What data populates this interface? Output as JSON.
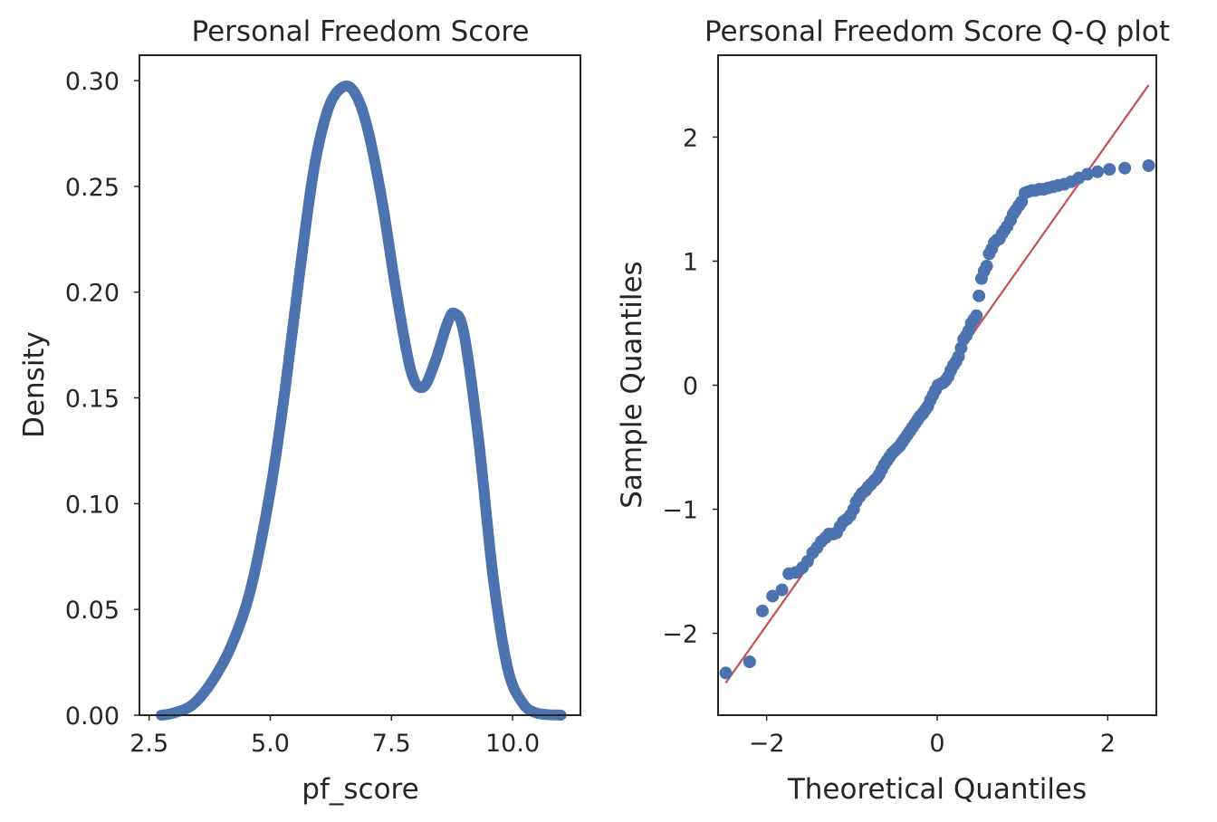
{
  "chart_data": [
    {
      "type": "line",
      "title": "Personal Freedom Score",
      "xlabel": "pf_score",
      "ylabel": "Density",
      "xlim": [
        2.3,
        11.4
      ],
      "ylim": [
        0.0,
        0.312
      ],
      "grid": false,
      "x_ticks": [
        2.5,
        5.0,
        7.5,
        10.0
      ],
      "x_tick_labels": [
        "2.5",
        "5.0",
        "7.5",
        "10.0"
      ],
      "y_ticks": [
        0.0,
        0.05,
        0.1,
        0.15,
        0.2,
        0.25,
        0.3
      ],
      "y_tick_labels": [
        "0.00",
        "0.05",
        "0.10",
        "0.15",
        "0.20",
        "0.25",
        "0.30"
      ],
      "color": "#4c72b0",
      "series": [
        {
          "x": [
            2.75,
            3.0,
            3.4,
            3.8,
            4.2,
            4.6,
            5.0,
            5.3,
            5.6,
            5.9,
            6.2,
            6.5,
            6.75,
            7.0,
            7.3,
            7.6,
            7.9,
            8.15,
            8.4,
            8.65,
            8.8,
            9.0,
            9.3,
            9.6,
            9.9,
            10.2,
            10.5,
            11.0
          ],
          "y": [
            0.0,
            0.001,
            0.005,
            0.016,
            0.033,
            0.06,
            0.106,
            0.153,
            0.208,
            0.258,
            0.287,
            0.297,
            0.294,
            0.278,
            0.244,
            0.2,
            0.163,
            0.155,
            0.167,
            0.185,
            0.19,
            0.18,
            0.13,
            0.065,
            0.022,
            0.006,
            0.001,
            0.0
          ]
        }
      ]
    },
    {
      "type": "scatter",
      "title": "Personal Freedom Score Q-Q plot",
      "xlabel": "Theoretical Quantiles",
      "ylabel": "Sample Quantiles",
      "xlim": [
        -2.57,
        2.57
      ],
      "ylim": [
        -2.66,
        2.66
      ],
      "grid": false,
      "x_ticks": [
        -2,
        0,
        2
      ],
      "x_tick_labels": [
        "−2",
        "0",
        "2"
      ],
      "y_ticks": [
        -2,
        -1,
        0,
        1,
        2
      ],
      "y_tick_labels": [
        "−2",
        "−1",
        "0",
        "1",
        "2"
      ],
      "point_color": "#4c72b0",
      "line_color": "#c44e52",
      "reference_line": [
        [
          -2.48,
          -2.4
        ],
        [
          2.48,
          2.42
        ]
      ],
      "series": [
        {
          "x": [
            -2.48,
            -2.2,
            -2.05,
            -1.93,
            -1.82,
            -1.74,
            -1.66,
            -1.58,
            -1.52,
            -1.46,
            -1.41,
            -1.36,
            -1.31,
            -1.27,
            -1.22,
            -1.18,
            -1.14,
            -1.1,
            -1.06,
            -1.02,
            -0.98,
            -0.95,
            -0.91,
            -0.88,
            -0.84,
            -0.81,
            -0.78,
            -0.74,
            -0.71,
            -0.68,
            -0.65,
            -0.62,
            -0.59,
            -0.56,
            -0.53,
            -0.5,
            -0.47,
            -0.44,
            -0.41,
            -0.38,
            -0.35,
            -0.32,
            -0.29,
            -0.26,
            -0.23,
            -0.2,
            -0.17,
            -0.14,
            -0.11,
            -0.08,
            -0.05,
            -0.02,
            0.01,
            0.04,
            0.07,
            0.1,
            0.13,
            0.16,
            0.19,
            0.22,
            0.25,
            0.28,
            0.31,
            0.34,
            0.37,
            0.4,
            0.43,
            0.46,
            0.49,
            0.52,
            0.55,
            0.58,
            0.61,
            0.64,
            0.67,
            0.7,
            0.73,
            0.76,
            0.79,
            0.82,
            0.86,
            0.89,
            0.92,
            0.96,
            0.99,
            1.03,
            1.07,
            1.11,
            1.15,
            1.2,
            1.25,
            1.3,
            1.36,
            1.42,
            1.49,
            1.57,
            1.66,
            1.76,
            1.88,
            2.02,
            2.2,
            2.48
          ],
          "y": [
            -2.32,
            -2.23,
            -1.82,
            -1.7,
            -1.65,
            -1.52,
            -1.51,
            -1.47,
            -1.42,
            -1.35,
            -1.31,
            -1.26,
            -1.23,
            -1.2,
            -1.2,
            -1.19,
            -1.14,
            -1.1,
            -1.08,
            -1.05,
            -1.0,
            -0.94,
            -0.9,
            -0.87,
            -0.85,
            -0.82,
            -0.8,
            -0.77,
            -0.75,
            -0.72,
            -0.68,
            -0.64,
            -0.61,
            -0.58,
            -0.55,
            -0.53,
            -0.51,
            -0.49,
            -0.46,
            -0.43,
            -0.4,
            -0.37,
            -0.34,
            -0.31,
            -0.28,
            -0.25,
            -0.23,
            -0.2,
            -0.17,
            -0.12,
            -0.08,
            -0.04,
            0.0,
            0.01,
            0.02,
            0.04,
            0.07,
            0.12,
            0.16,
            0.19,
            0.23,
            0.3,
            0.37,
            0.4,
            0.44,
            0.5,
            0.53,
            0.56,
            0.72,
            0.86,
            0.92,
            0.96,
            1.06,
            1.1,
            1.15,
            1.17,
            1.18,
            1.22,
            1.25,
            1.28,
            1.33,
            1.38,
            1.41,
            1.45,
            1.48,
            1.55,
            1.56,
            1.57,
            1.57,
            1.58,
            1.58,
            1.59,
            1.6,
            1.61,
            1.62,
            1.64,
            1.67,
            1.7,
            1.72,
            1.74,
            1.75,
            1.77
          ]
        }
      ]
    }
  ]
}
